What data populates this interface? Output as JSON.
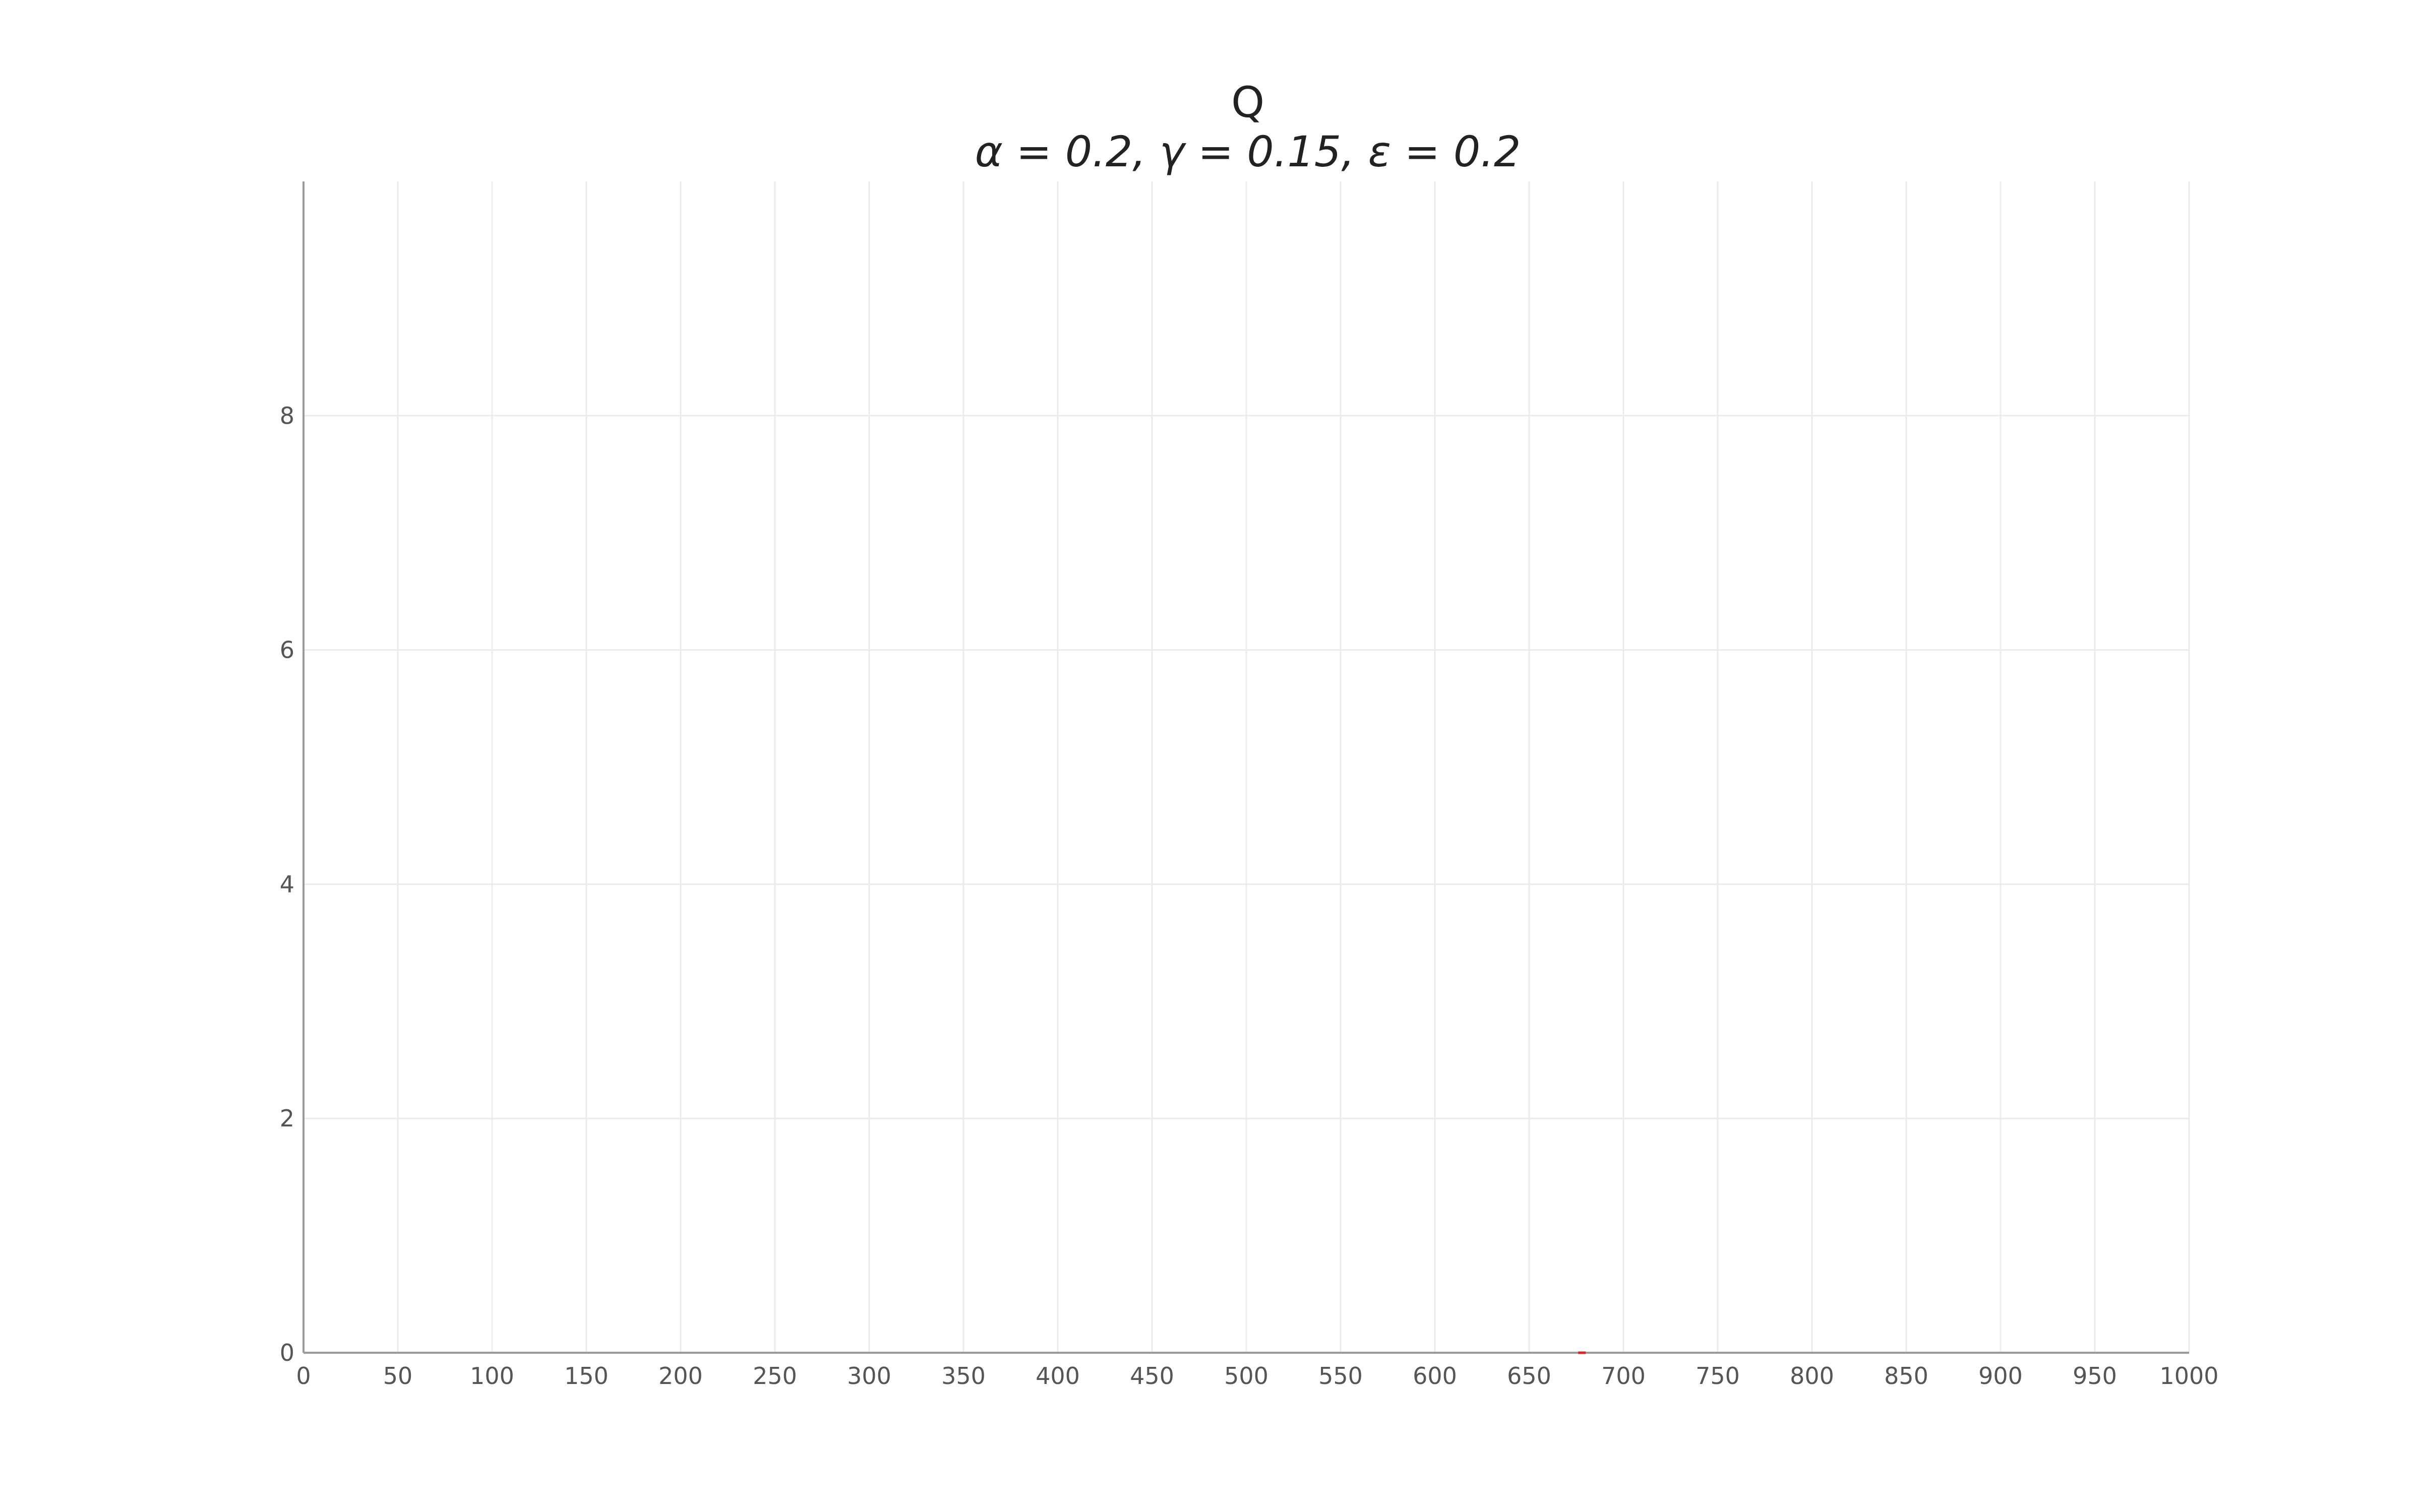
{
  "chart_data": {
    "type": "line",
    "title": "Q",
    "subtitle": "α = 0.2, γ = 0.15, ε = 0.2",
    "xlabel": "",
    "ylabel": "",
    "xlim": [
      0,
      1000
    ],
    "ylim": [
      0,
      10
    ],
    "x_ticks": [
      0,
      50,
      100,
      150,
      200,
      250,
      300,
      350,
      400,
      450,
      500,
      550,
      600,
      650,
      700,
      750,
      800,
      850,
      900,
      950,
      1000
    ],
    "y_ticks": [
      0,
      2,
      4,
      6,
      8
    ],
    "grid": true,
    "legend": "none",
    "series": [
      {
        "color": "#d62728",
        "x": [
          676,
          680
        ],
        "y": [
          0,
          0
        ]
      }
    ]
  },
  "colors": {
    "axis": "#9a9a9a",
    "grid": "#ebebeb",
    "tick_text": "#555555",
    "title_text": "#222222"
  }
}
